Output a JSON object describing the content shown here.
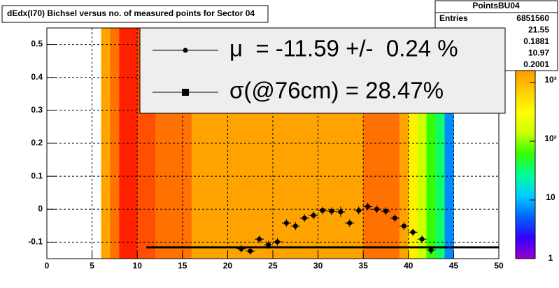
{
  "chart_data": {
    "type": "heatmap",
    "title": "dEdx(I70) Bichsel versus no. of measured points for Sector 04",
    "x_bins": [
      6,
      7,
      8,
      9,
      10,
      11,
      12,
      13,
      14,
      15,
      16,
      17,
      18,
      19,
      20,
      21,
      22,
      23,
      24,
      25,
      26,
      27,
      28,
      29,
      30,
      31,
      32,
      33,
      34,
      35,
      36,
      37,
      38,
      39,
      40,
      41,
      42,
      43,
      44,
      45
    ],
    "z": [
      1400,
      3150,
      6500,
      6500,
      4500,
      4500,
      3150,
      3150,
      3150,
      3150,
      1400,
      1400,
      1400,
      1400,
      1400,
      1400,
      1400,
      1400,
      1400,
      1400,
      1400,
      1400,
      1400,
      1400,
      1400,
      1400,
      1400,
      1400,
      1400,
      3150,
      3150,
      3150,
      3150,
      1400,
      400,
      140,
      60,
      35,
      7
    ],
    "zlim": [
      1,
      8500
    ],
    "zlog": true,
    "zticks": [
      1,
      10,
      {
        "value": 100,
        "label": "10²"
      },
      {
        "value": 1000,
        "label": "10³"
      }
    ],
    "palette": [
      "#9900cc",
      "#3300ff",
      "#0066ff",
      "#00ccff",
      "#00ff99",
      "#33ff00",
      "#ccff00",
      "#ffff00",
      "#ffcc00",
      "#ff9900",
      "#ff6600",
      "#ff0000"
    ],
    "xlim": [
      0,
      50
    ],
    "ylim": [
      -0.15,
      0.55
    ],
    "xticks": [
      0,
      5,
      10,
      15,
      20,
      25,
      30,
      35,
      40,
      45,
      50
    ],
    "yticks": [
      -0.1,
      0,
      0.1,
      0.2,
      0.3,
      0.4,
      0.5
    ],
    "grid": true,
    "profile": {
      "x": [
        21.5,
        22.5,
        23.5,
        24.5,
        25.5,
        26.5,
        27.5,
        28.5,
        29.5,
        30.5,
        31.5,
        32.5,
        33.5,
        34.5,
        35.5,
        36.5,
        37.5,
        38.5,
        39.5,
        40.5,
        41.5,
        42.5
      ],
      "y": [
        -0.12,
        -0.127,
        -0.091,
        -0.108,
        -0.099,
        -0.042,
        -0.051,
        -0.027,
        -0.019,
        -0.004,
        -0.006,
        -0.008,
        -0.042,
        -0.004,
        0.008,
        0,
        -0.006,
        -0.027,
        -0.051,
        -0.07,
        -0.091,
        -0.124
      ],
      "yerr": [
        0.012,
        0.012,
        0.012,
        0.012,
        0.012,
        0.012,
        0.012,
        0.012,
        0.012,
        0.012,
        0.012,
        0.016,
        0.012,
        0.012,
        0.012,
        0.012,
        0.012,
        0.012,
        0.012,
        0.012,
        0.012,
        0.012
      ],
      "xerr": 0.5,
      "color": "#000000"
    },
    "fit": {
      "y": -0.1159,
      "xlim": [
        11,
        50
      ]
    },
    "stats": {
      "title": "PointsBU04",
      "rows": [
        {
          "name": "Entries",
          "value": 6851560
        },
        {
          "value": 21.55
        },
        {
          "value": 0.1881
        },
        {
          "value": 10.97
        },
        {
          "value": 0.2001
        }
      ]
    },
    "legend": [
      "μ  = -11.59 +/-  0.24 %",
      "σ(@76cm) = 28.47%"
    ]
  }
}
